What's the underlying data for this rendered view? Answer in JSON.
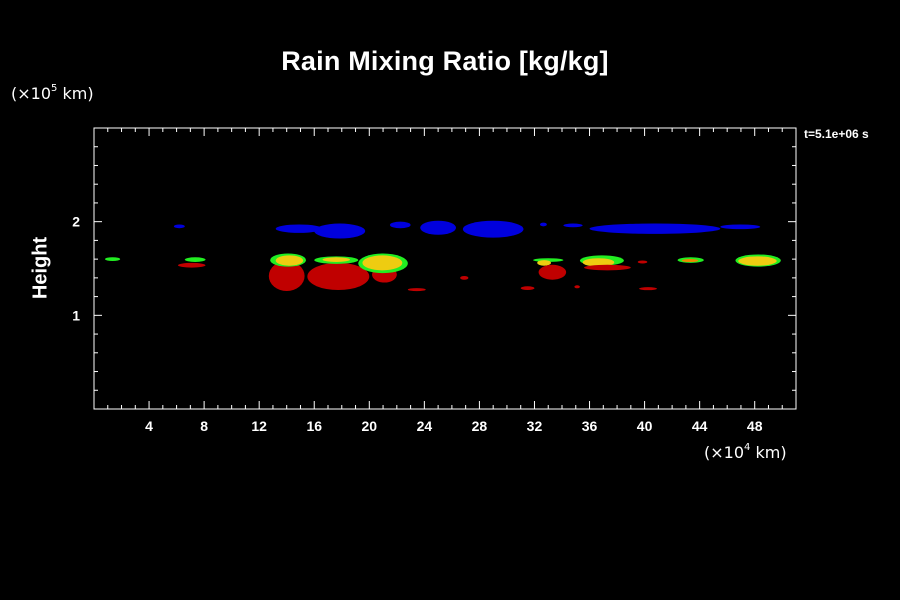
{
  "chart_data": {
    "type": "heatmap",
    "title": "Rain Mixing Ratio [kg/kg]",
    "ylabel": "Height",
    "yunit": {
      "mult": "×10",
      "exp": "5",
      "unit": " km"
    },
    "xunit": {
      "mult": "×10",
      "exp": "4",
      "unit": " km"
    },
    "time_label": "t=5.1e+06 s",
    "xlim": [
      0,
      51
    ],
    "ylim": [
      0,
      3
    ],
    "x_ticks": [
      4,
      8,
      12,
      16,
      20,
      24,
      28,
      32,
      36,
      40,
      44,
      48
    ],
    "y_ticks": [
      1,
      2
    ],
    "colors": {
      "blue": "#0000dd",
      "red": "#c00000",
      "green": "#22ee22",
      "yellow": "#eecc11",
      "orange": "#ee8800"
    },
    "regions": [
      {
        "color": "blue",
        "x": [
          5.8,
          6.6
        ],
        "y": [
          1.93,
          1.97
        ]
      },
      {
        "color": "blue",
        "x": [
          13.2,
          16.6
        ],
        "y": [
          1.88,
          1.97
        ]
      },
      {
        "color": "blue",
        "x": [
          16.0,
          19.7
        ],
        "y": [
          1.82,
          1.98
        ]
      },
      {
        "color": "blue",
        "x": [
          21.5,
          23.0
        ],
        "y": [
          1.93,
          2.0
        ]
      },
      {
        "color": "blue",
        "x": [
          23.7,
          26.3
        ],
        "y": [
          1.86,
          2.01
        ]
      },
      {
        "color": "blue",
        "x": [
          26.8,
          31.2
        ],
        "y": [
          1.83,
          2.01
        ]
      },
      {
        "color": "blue",
        "x": [
          32.4,
          32.9
        ],
        "y": [
          1.95,
          1.99
        ]
      },
      {
        "color": "blue",
        "x": [
          34.1,
          35.5
        ],
        "y": [
          1.94,
          1.98
        ]
      },
      {
        "color": "blue",
        "x": [
          36.0,
          45.5
        ],
        "y": [
          1.87,
          1.98
        ]
      },
      {
        "color": "blue",
        "x": [
          45.5,
          48.4
        ],
        "y": [
          1.92,
          1.97
        ]
      },
      {
        "color": "green",
        "x": [
          0.8,
          1.9
        ],
        "y": [
          1.58,
          1.62
        ]
      },
      {
        "color": "green",
        "x": [
          6.6,
          8.1
        ],
        "y": [
          1.57,
          1.62
        ]
      },
      {
        "color": "red",
        "x": [
          6.1,
          8.1
        ],
        "y": [
          1.51,
          1.56
        ]
      },
      {
        "color": "red",
        "x": [
          12.7,
          15.3
        ],
        "y": [
          1.26,
          1.58
        ]
      },
      {
        "color": "green",
        "x": [
          12.8,
          15.4
        ],
        "y": [
          1.52,
          1.66
        ]
      },
      {
        "color": "yellow",
        "x": [
          13.2,
          15.2
        ],
        "y": [
          1.53,
          1.64
        ]
      },
      {
        "color": "red",
        "x": [
          15.5,
          20.0
        ],
        "y": [
          1.27,
          1.56
        ]
      },
      {
        "color": "green",
        "x": [
          16.0,
          19.2
        ],
        "y": [
          1.55,
          1.63
        ]
      },
      {
        "color": "yellow",
        "x": [
          16.6,
          18.6
        ],
        "y": [
          1.57,
          1.62
        ]
      },
      {
        "color": "red",
        "x": [
          20.2,
          22.0
        ],
        "y": [
          1.35,
          1.52
        ]
      },
      {
        "color": "green",
        "x": [
          19.2,
          22.8
        ],
        "y": [
          1.45,
          1.66
        ]
      },
      {
        "color": "yellow",
        "x": [
          19.5,
          22.4
        ],
        "y": [
          1.48,
          1.64
        ]
      },
      {
        "color": "red",
        "x": [
          22.8,
          24.1
        ],
        "y": [
          1.26,
          1.29
        ]
      },
      {
        "color": "red",
        "x": [
          26.6,
          27.2
        ],
        "y": [
          1.38,
          1.42
        ]
      },
      {
        "color": "red",
        "x": [
          31.0,
          32.0
        ],
        "y": [
          1.27,
          1.31
        ]
      },
      {
        "color": "green",
        "x": [
          31.9,
          34.1
        ],
        "y": [
          1.57,
          1.61
        ]
      },
      {
        "color": "yellow",
        "x": [
          32.2,
          33.2
        ],
        "y": [
          1.53,
          1.59
        ]
      },
      {
        "color": "red",
        "x": [
          32.3,
          34.3
        ],
        "y": [
          1.38,
          1.54
        ]
      },
      {
        "color": "red",
        "x": [
          34.9,
          35.3
        ],
        "y": [
          1.29,
          1.32
        ]
      },
      {
        "color": "green",
        "x": [
          35.3,
          38.5
        ],
        "y": [
          1.53,
          1.64
        ]
      },
      {
        "color": "yellow",
        "x": [
          35.5,
          37.8
        ],
        "y": [
          1.52,
          1.61
        ]
      },
      {
        "color": "red",
        "x": [
          35.6,
          39.0
        ],
        "y": [
          1.48,
          1.54
        ]
      },
      {
        "color": "red",
        "x": [
          39.5,
          40.2
        ],
        "y": [
          1.56,
          1.58
        ]
      },
      {
        "color": "red",
        "x": [
          39.6,
          40.9
        ],
        "y": [
          1.27,
          1.3
        ]
      },
      {
        "color": "green",
        "x": [
          42.4,
          44.3
        ],
        "y": [
          1.56,
          1.62
        ]
      },
      {
        "color": "orange",
        "x": [
          42.7,
          43.9
        ],
        "y": [
          1.57,
          1.6
        ]
      },
      {
        "color": "green",
        "x": [
          46.6,
          49.9
        ],
        "y": [
          1.52,
          1.65
        ]
      },
      {
        "color": "yellow",
        "x": [
          46.8,
          49.6
        ],
        "y": [
          1.53,
          1.63
        ]
      }
    ]
  }
}
